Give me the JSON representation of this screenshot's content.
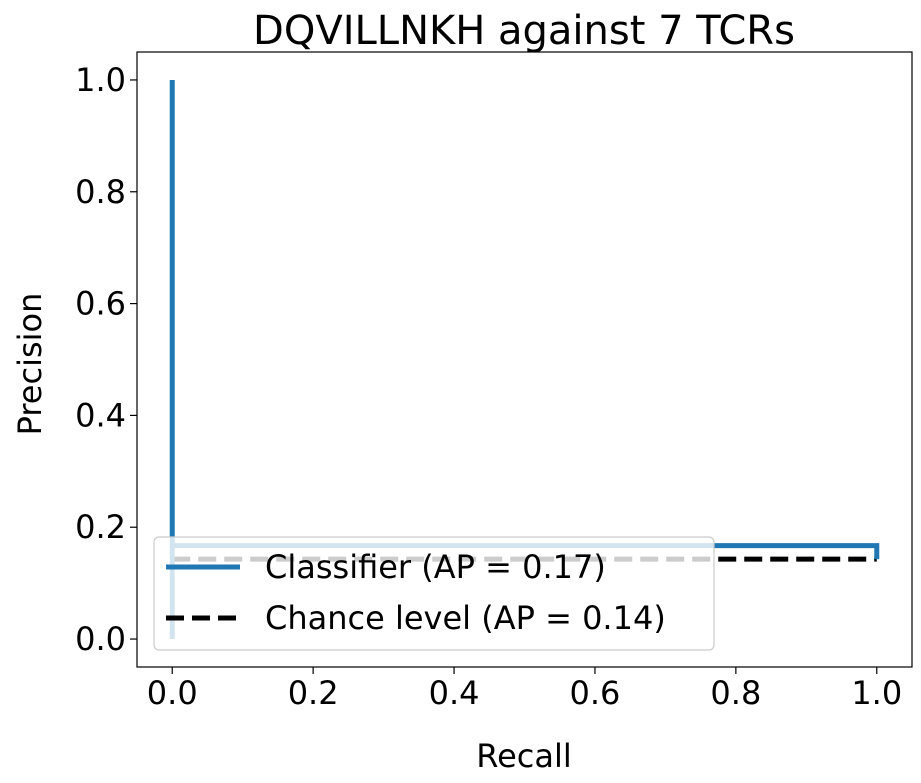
{
  "chart_data": {
    "type": "line",
    "title": "DQVILLNKH against 7 TCRs",
    "xlabel": "Recall",
    "ylabel": "Precision",
    "xlim": [
      -0.05,
      1.05
    ],
    "ylim": [
      -0.05,
      1.05
    ],
    "xticks": [
      "0.0",
      "0.2",
      "0.4",
      "0.6",
      "0.8",
      "1.0"
    ],
    "yticks": [
      "0.0",
      "0.2",
      "0.4",
      "0.6",
      "0.8",
      "1.0"
    ],
    "grid": false,
    "legend_position": "lower-left",
    "series": [
      {
        "name": "Classifier (AP = 0.17)",
        "color": "#1f77b4",
        "style": "solid",
        "x": [
          0.0,
          0.0,
          0.0,
          1.0,
          1.0
        ],
        "y": [
          0.0,
          1.0,
          0.167,
          0.167,
          0.143
        ]
      },
      {
        "name": "Chance level (AP = 0.14)",
        "color": "#000000",
        "style": "dashed",
        "x": [
          0.0,
          1.0
        ],
        "y": [
          0.143,
          0.143
        ]
      }
    ]
  }
}
